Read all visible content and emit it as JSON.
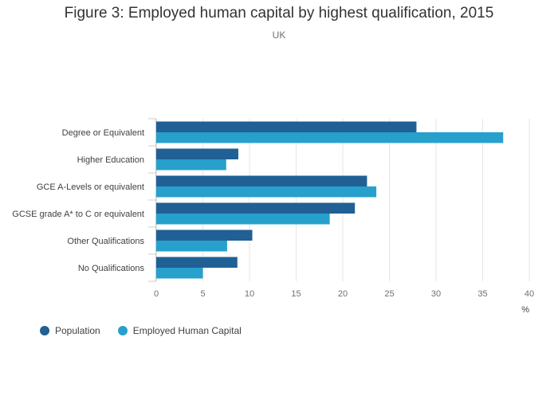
{
  "chart_data": {
    "type": "bar",
    "orientation": "horizontal",
    "title": "Figure 3: Employed human capital by highest qualification, 2015",
    "subtitle": "UK",
    "xlabel": "%",
    "ylabel": "",
    "xlim": [
      0,
      40
    ],
    "xticks": [
      0,
      5,
      10,
      15,
      20,
      25,
      30,
      35,
      40
    ],
    "grid": true,
    "legend_position": "bottom-left",
    "categories": [
      "Degree or Equivalent",
      "Higher Education",
      "GCE A-Levels or equivalent",
      "GCSE grade A* to C or equivalent",
      "Other Qualifications",
      "No Qualifications"
    ],
    "series": [
      {
        "name": "Population",
        "color": "#206095",
        "values": [
          27.9,
          8.8,
          22.6,
          21.3,
          10.3,
          8.7
        ]
      },
      {
        "name": "Employed Human Capital",
        "color": "#27a0cc",
        "values": [
          37.2,
          7.5,
          23.6,
          18.6,
          7.6,
          5.0
        ]
      }
    ]
  }
}
